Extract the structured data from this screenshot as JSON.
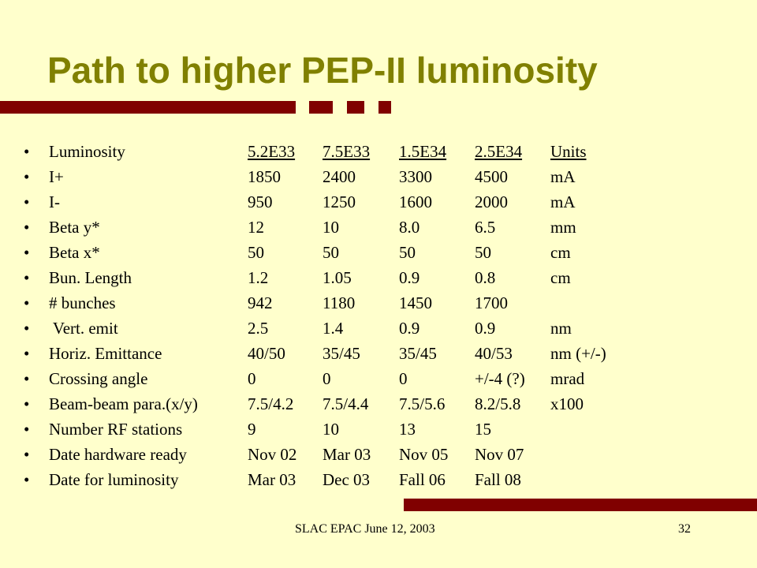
{
  "slide": {
    "title": "Path to higher PEP-II luminosity",
    "bullet": "•",
    "table": {
      "header": {
        "label": "Luminosity",
        "values": [
          "5.2E33",
          "7.5E33",
          "1.5E34",
          "2.5E34"
        ],
        "unit": "Units"
      },
      "rows": [
        {
          "label": "I+",
          "values": [
            "1850",
            "2400",
            "3300",
            "4500"
          ],
          "unit": "mA"
        },
        {
          "label": "I-",
          "values": [
            "950",
            "1250",
            "1600",
            "2000"
          ],
          "unit": "mA"
        },
        {
          "label": "Beta y*",
          "values": [
            "12",
            "10",
            "8.0",
            "6.5"
          ],
          "unit": "mm"
        },
        {
          "label": "Beta x*",
          "values": [
            "50",
            "50",
            "50",
            "50"
          ],
          "unit": "cm"
        },
        {
          "label": "Bun. Length",
          "values": [
            "1.2",
            "1.05",
            "0.9",
            "0.8"
          ],
          "unit": "cm"
        },
        {
          "label": "# bunches",
          "values": [
            "942",
            "1180",
            "1450",
            "1700"
          ],
          "unit": ""
        },
        {
          "label": " Vert. emit",
          "values": [
            "2.5",
            "1.4",
            "0.9",
            "0.9"
          ],
          "unit": "nm"
        },
        {
          "label": "Horiz. Emittance",
          "values": [
            "40/50",
            "35/45",
            "35/45",
            "40/53"
          ],
          "unit": "nm (+/-)"
        },
        {
          "label": "Crossing angle",
          "values": [
            "0",
            "0",
            "0",
            "+/-4 (?)"
          ],
          "unit": "mrad"
        },
        {
          "label": "Beam-beam para.(x/y)",
          "values": [
            "7.5/4.2",
            "7.5/4.4",
            "7.5/5.6",
            "8.2/5.8"
          ],
          "unit": "x100"
        },
        {
          "label": "Number RF stations",
          "values": [
            "9",
            "10",
            "13",
            "15"
          ],
          "unit": ""
        },
        {
          "label": "Date hardware ready",
          "values": [
            "Nov 02",
            "Mar 03",
            "Nov 05",
            "Nov 07"
          ],
          "unit": ""
        },
        {
          "label": "Date for luminosity",
          "values": [
            "Mar 03",
            "Dec 03",
            "Fall 06",
            "Fall 08"
          ],
          "unit": ""
        }
      ]
    },
    "footer": {
      "left": "SLAC EPAC June 12, 2003",
      "page_number": "32"
    },
    "colors": {
      "background": "#FFFFCC",
      "title": "#808000",
      "accent_bar": "#800000"
    }
  }
}
